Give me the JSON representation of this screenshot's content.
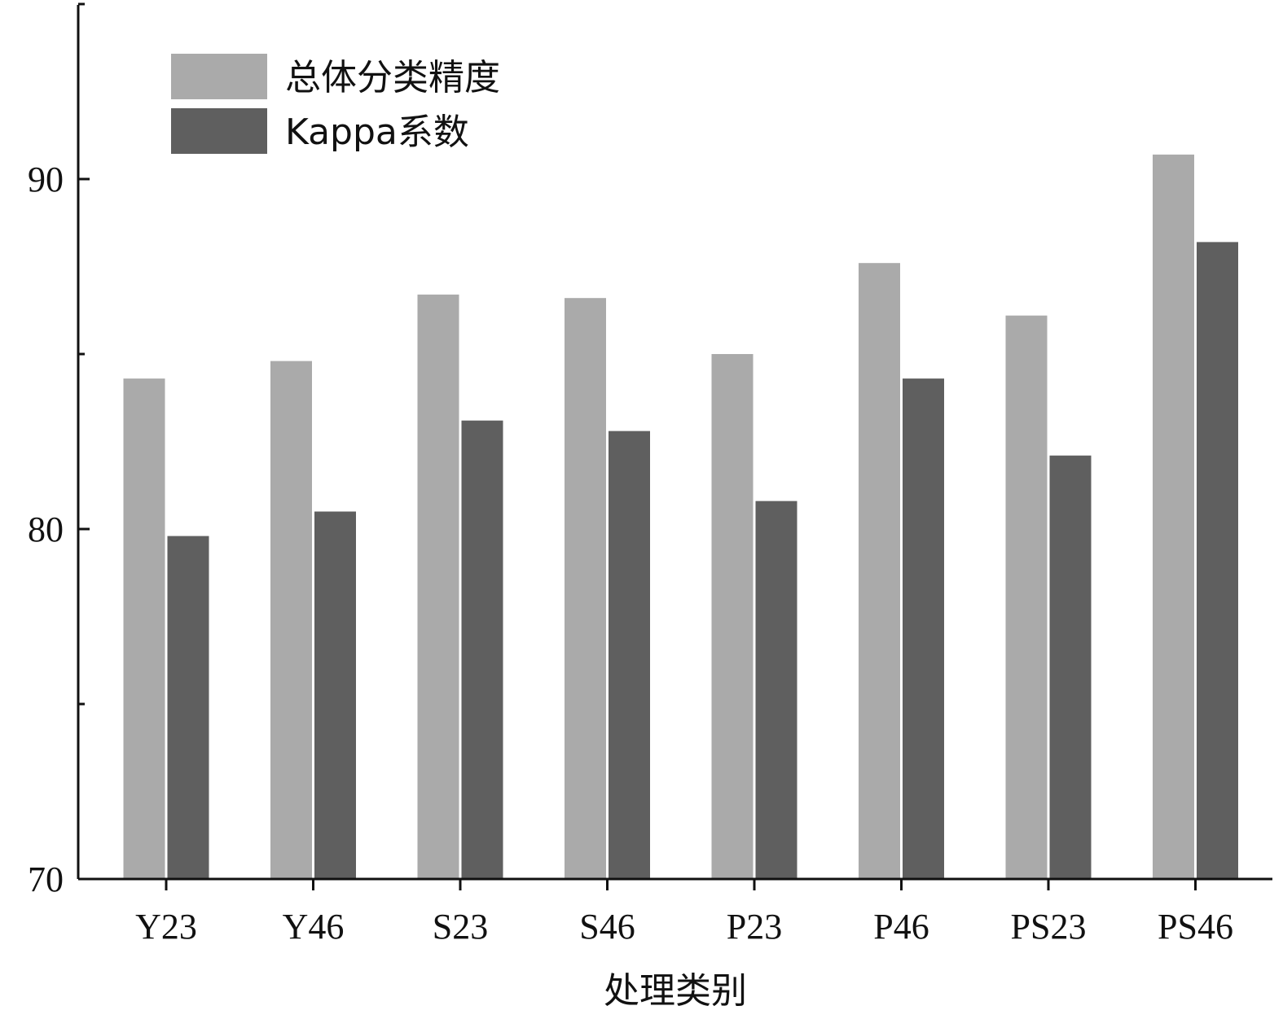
{
  "chart_data": {
    "type": "bar",
    "title": "",
    "xlabel": "处理类别",
    "ylabel": "",
    "categories": [
      "Y23",
      "Y46",
      "S23",
      "S46",
      "P23",
      "P46",
      "PS23",
      "PS46"
    ],
    "series": [
      {
        "name": "总体分类精度",
        "color": "#aaaaaa",
        "values": [
          84.3,
          84.8,
          86.7,
          86.6,
          85.0,
          87.6,
          86.1,
          90.7
        ]
      },
      {
        "name": "Kappa系数",
        "color": "#5f5f5f",
        "values": [
          79.8,
          80.5,
          83.1,
          82.8,
          80.8,
          84.3,
          82.1,
          88.2
        ]
      }
    ],
    "ylim": [
      70,
      95
    ],
    "yticks": [
      70,
      80,
      90
    ],
    "ytick_labels": [
      "70",
      "80",
      "90"
    ],
    "grid": false,
    "legend_position": "top-left"
  }
}
